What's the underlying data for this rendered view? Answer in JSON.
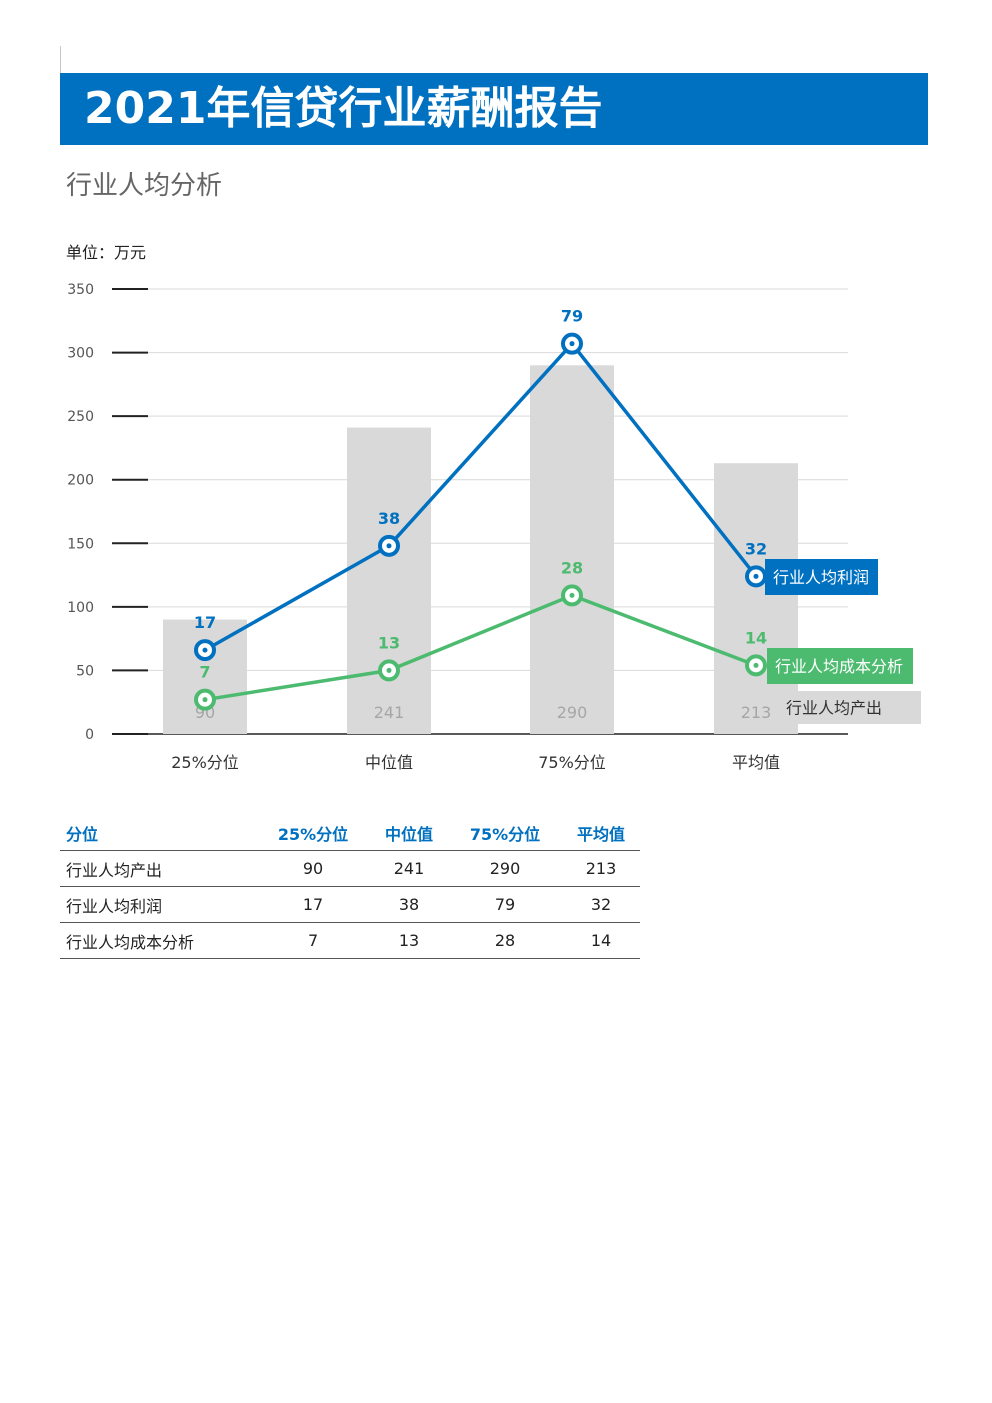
{
  "header": {
    "title": "2021年信贷行业薪酬报告"
  },
  "section": {
    "subtitle": "行业人均分析"
  },
  "chart_unit": "单位：万元",
  "chart_data": {
    "type": "bar",
    "categories": [
      "25%分位",
      "中位值",
      "75%分位",
      "平均值"
    ],
    "ylim": [
      0,
      350
    ],
    "yticks": [
      0,
      50,
      100,
      150,
      200,
      250,
      300,
      350
    ],
    "grid": true,
    "bar_series": {
      "name": "行业人均产出",
      "values": [
        90,
        241,
        290,
        213
      ],
      "color": "#d9d9d9",
      "label_color": "#a6a6a6"
    },
    "line_series": [
      {
        "name": "行业人均利润",
        "labels": [
          17,
          38,
          79,
          32
        ],
        "plot_values": [
          66,
          148,
          307,
          124
        ],
        "color": "#0070c0"
      },
      {
        "name": "行业人均成本分析",
        "labels": [
          7,
          13,
          28,
          14
        ],
        "plot_values": [
          27,
          50,
          109,
          54
        ],
        "color": "#4cbb6f"
      }
    ]
  },
  "table": {
    "headers": [
      "分位",
      "25%分位",
      "中位值",
      "75%分位",
      "平均值"
    ],
    "rows": [
      [
        "行业人均产出",
        "90",
        "241",
        "290",
        "213"
      ],
      [
        "行业人均利润",
        "17",
        "38",
        "79",
        "32"
      ],
      [
        "行业人均成本分析",
        "7",
        "13",
        "28",
        "14"
      ]
    ]
  }
}
